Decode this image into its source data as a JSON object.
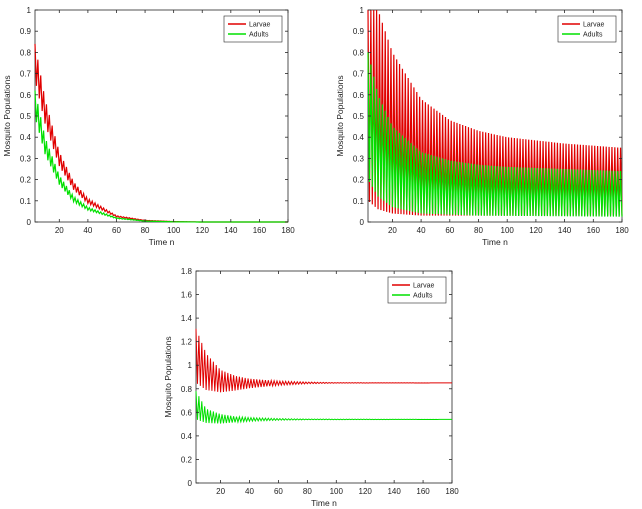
{
  "chart_data": [
    {
      "type": "line",
      "xlabel": "Time n",
      "ylabel": "Mosquito Populations",
      "xlim": [
        3,
        180
      ],
      "ylim": [
        0,
        1
      ],
      "x_ticks": [
        "20",
        "40",
        "60",
        "80",
        "100",
        "120",
        "140",
        "160",
        "180"
      ],
      "y_ticks": [
        "0",
        "0.1",
        "0.2",
        "0.3",
        "0.4",
        "0.5",
        "0.6",
        "0.7",
        "0.8",
        "0.9",
        "1"
      ],
      "legend_position": "top-right",
      "series": [
        {
          "name": "Larvae",
          "color": "#e00000",
          "description": "oscillating decay",
          "points": [
            [
              3,
              0.84
            ],
            [
              10,
              0.58
            ],
            [
              20,
              0.33
            ],
            [
              30,
              0.19
            ],
            [
              40,
              0.11
            ],
            [
              60,
              0.03
            ],
            [
              80,
              0.008
            ],
            [
              100,
              0.002
            ],
            [
              120,
              0.0
            ],
            [
              180,
              0.0
            ]
          ]
        },
        {
          "name": "Adults",
          "color": "#00e000",
          "points": [
            [
              3,
              0.62
            ],
            [
              10,
              0.4
            ],
            [
              20,
              0.22
            ],
            [
              30,
              0.12
            ],
            [
              40,
              0.07
            ],
            [
              60,
              0.02
            ],
            [
              80,
              0.005
            ],
            [
              100,
              0.001
            ],
            [
              120,
              0.0
            ],
            [
              180,
              0.0
            ]
          ]
        }
      ]
    },
    {
      "type": "line",
      "xlabel": "Time n",
      "ylabel": "Mosquito Populations",
      "xlim": [
        3,
        180
      ],
      "ylim": [
        0,
        1
      ],
      "x_ticks": [
        "20",
        "40",
        "60",
        "80",
        "100",
        "120",
        "140",
        "160",
        "180"
      ],
      "y_ticks": [
        "0",
        "0.1",
        "0.2",
        "0.3",
        "0.4",
        "0.5",
        "0.6",
        "0.7",
        "0.8",
        "0.9",
        "1"
      ],
      "legend_position": "top-right",
      "series": [
        {
          "name": "Larvae",
          "color": "#e00000",
          "upper_envelope": [
            [
              3,
              1.0
            ],
            [
              10,
              1.0
            ],
            [
              20,
              0.8
            ],
            [
              40,
              0.58
            ],
            [
              60,
              0.48
            ],
            [
              80,
              0.43
            ],
            [
              100,
              0.4
            ],
            [
              140,
              0.37
            ],
            [
              180,
              0.35
            ]
          ],
          "lower_envelope": [
            [
              3,
              0.1
            ],
            [
              10,
              0.06
            ],
            [
              20,
              0.04
            ],
            [
              40,
              0.03
            ],
            [
              80,
              0.03
            ],
            [
              180,
              0.03
            ]
          ]
        },
        {
          "name": "Adults",
          "color": "#00e000",
          "upper_envelope": [
            [
              3,
              0.8
            ],
            [
              10,
              0.6
            ],
            [
              20,
              0.45
            ],
            [
              40,
              0.33
            ],
            [
              60,
              0.29
            ],
            [
              80,
              0.27
            ],
            [
              100,
              0.26
            ],
            [
              140,
              0.25
            ],
            [
              180,
              0.24
            ]
          ],
          "lower_envelope": [
            [
              3,
              0.2
            ],
            [
              10,
              0.12
            ],
            [
              20,
              0.07
            ],
            [
              40,
              0.04
            ],
            [
              80,
              0.03
            ],
            [
              180,
              0.025
            ]
          ]
        }
      ]
    },
    {
      "type": "line",
      "xlabel": "Time n",
      "ylabel": "Mosquito Populations",
      "xlim": [
        3,
        180
      ],
      "ylim": [
        0,
        1.8
      ],
      "x_ticks": [
        "20",
        "40",
        "60",
        "80",
        "100",
        "120",
        "140",
        "160",
        "180"
      ],
      "y_ticks": [
        "0",
        "0.2",
        "0.4",
        "0.6",
        "0.8",
        "1",
        "1.2",
        "1.4",
        "1.6",
        "1.8"
      ],
      "legend_position": "top-right",
      "series": [
        {
          "name": "Larvae",
          "color": "#e00000",
          "equilibrium": 0.85,
          "upper_envelope": [
            [
              3,
              1.31
            ],
            [
              10,
              1.1
            ],
            [
              20,
              0.96
            ],
            [
              30,
              0.91
            ],
            [
              40,
              0.885
            ],
            [
              60,
              0.865
            ],
            [
              80,
              0.857
            ],
            [
              100,
              0.852
            ],
            [
              180,
              0.85
            ]
          ],
          "lower_envelope": [
            [
              3,
              0.85
            ],
            [
              10,
              0.79
            ],
            [
              20,
              0.77
            ],
            [
              30,
              0.785
            ],
            [
              40,
              0.805
            ],
            [
              60,
              0.83
            ],
            [
              80,
              0.843
            ],
            [
              100,
              0.848
            ],
            [
              180,
              0.85
            ]
          ]
        },
        {
          "name": "Adults",
          "color": "#00e000",
          "equilibrium": 0.54,
          "upper_envelope": [
            [
              3,
              0.78
            ],
            [
              10,
              0.63
            ],
            [
              20,
              0.585
            ],
            [
              30,
              0.565
            ],
            [
              40,
              0.555
            ],
            [
              60,
              0.547
            ],
            [
              80,
              0.543
            ],
            [
              180,
              0.54
            ]
          ],
          "lower_envelope": [
            [
              3,
              0.54
            ],
            [
              10,
              0.51
            ],
            [
              20,
              0.505
            ],
            [
              30,
              0.515
            ],
            [
              40,
              0.525
            ],
            [
              60,
              0.533
            ],
            [
              80,
              0.537
            ],
            [
              180,
              0.54
            ]
          ]
        }
      ]
    }
  ]
}
